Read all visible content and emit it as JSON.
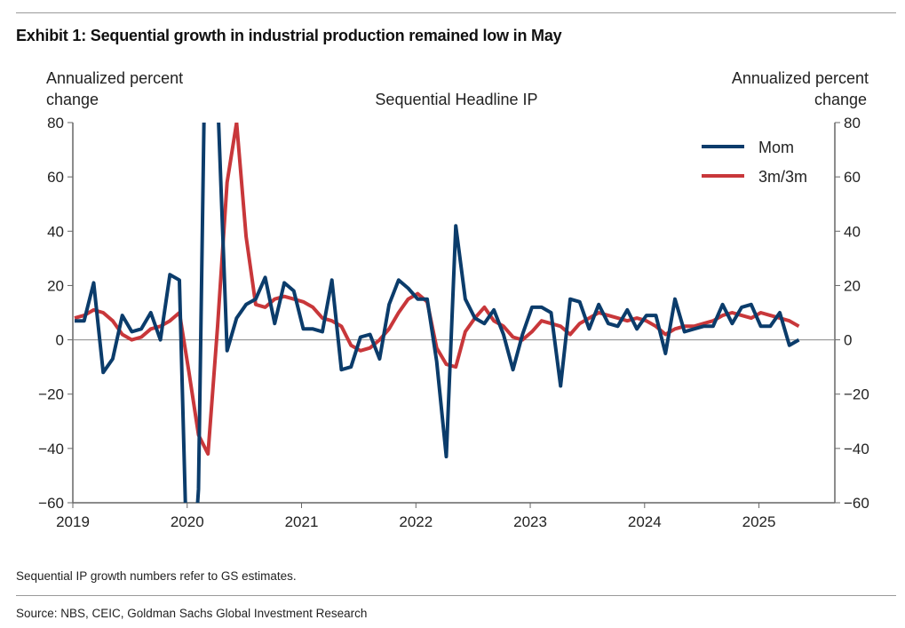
{
  "title": "Exhibit 1: Sequential growth in industrial production remained low in May",
  "note": "Sequential IP growth numbers refer to GS estimates.",
  "source": "Source: NBS, CEIC, Goldman Sachs Global Investment Research",
  "chart_data": {
    "type": "line",
    "title": "Sequential Headline IP",
    "ylabel_left": [
      "Annualized percent",
      "change"
    ],
    "ylabel_right": [
      "Annualized percent",
      "change"
    ],
    "ylim": [
      -60,
      80
    ],
    "yticks": [
      80,
      60,
      40,
      20,
      0,
      -20,
      -40,
      -60
    ],
    "ytick_labels": [
      "80",
      "60",
      "40",
      "20",
      "0",
      "−20",
      "−40",
      "−60"
    ],
    "xticks": [
      "2019",
      "2020",
      "2021",
      "2022",
      "2023",
      "2024",
      "2025"
    ],
    "x_start": "2019-01",
    "frequency": "monthly",
    "legend_position": "top-right",
    "colors": {
      "Mom": "#0b3c6b",
      "3m/3m": "#c8373a"
    },
    "series": [
      {
        "name": "Mom",
        "values": [
          7,
          7,
          21,
          -12,
          -7,
          9,
          3,
          4,
          10,
          0,
          24,
          22,
          -110,
          -55,
          180,
          90,
          -4,
          8,
          13,
          15,
          23,
          6,
          21,
          18,
          4,
          4,
          3,
          22,
          -11,
          -10,
          1,
          2,
          -7,
          13,
          22,
          19,
          15,
          15,
          -8,
          -43,
          42,
          15,
          8,
          6,
          11,
          2,
          -11,
          2,
          12,
          12,
          10,
          -17,
          15,
          14,
          4,
          13,
          6,
          5,
          11,
          4,
          9,
          9,
          -5,
          15,
          3,
          4,
          5,
          5,
          13,
          6,
          12,
          13,
          5,
          5,
          10,
          -2,
          0
        ]
      },
      {
        "name": "3m/3m",
        "values": [
          8,
          9,
          11,
          10,
          7,
          2,
          0,
          1,
          4,
          5,
          7,
          10,
          -12,
          -35,
          -42,
          5,
          58,
          80,
          38,
          13,
          12,
          15,
          16,
          15,
          14,
          12,
          8,
          7,
          5,
          -2,
          -4,
          -3,
          0,
          4,
          10,
          15,
          17,
          14,
          -3,
          -9,
          -10,
          3,
          8,
          12,
          7,
          5,
          1,
          0,
          3,
          7,
          6,
          5,
          2,
          6,
          8,
          10,
          9,
          8,
          7,
          8,
          7,
          5,
          2,
          4,
          5,
          5,
          6,
          7,
          9,
          10,
          9,
          8,
          10,
          9,
          8,
          7,
          5
        ]
      }
    ]
  }
}
